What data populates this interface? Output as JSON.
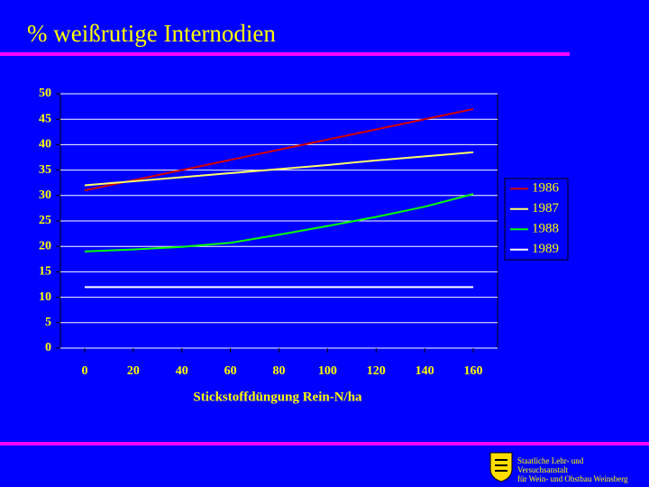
{
  "chart_data": {
    "type": "line",
    "title": "% weißrutige Internodien",
    "x_label": "Stickstoffdüngung Rein-N/ha",
    "x": [
      0,
      20,
      40,
      60,
      80,
      100,
      120,
      140,
      160
    ],
    "series": [
      {
        "name": "1986",
        "color": "#d40000",
        "values": [
          31,
          33,
          35,
          37,
          39,
          41,
          43,
          45,
          47
        ]
      },
      {
        "name": "1987",
        "color": "#ffff66",
        "values": [
          32,
          32.8,
          33.6,
          34.4,
          35.2,
          36,
          36.9,
          37.7,
          38.5
        ]
      },
      {
        "name": "1988",
        "color": "#00ff00",
        "values": [
          19,
          19.4,
          19.9,
          20.7,
          22.3,
          24,
          25.8,
          27.8,
          30.3
        ]
      },
      {
        "name": "1989",
        "color": "#ffffff",
        "values": [
          12,
          12,
          12,
          12,
          12,
          12,
          12,
          12,
          12
        ]
      }
    ],
    "xlim": [
      -10,
      170
    ],
    "xticks": [
      0,
      20,
      40,
      60,
      80,
      100,
      120,
      140,
      160
    ],
    "ylim": [
      0,
      50
    ],
    "yticks": [
      0,
      5,
      10,
      15,
      20,
      25,
      30,
      35,
      40,
      45,
      50
    ],
    "grid": true,
    "legend": "right"
  },
  "footer": {
    "lines": [
      "Staatliche Lehr- und",
      "Versuchsanstalt",
      "für Wein- und Obstbau Weinsberg"
    ]
  }
}
